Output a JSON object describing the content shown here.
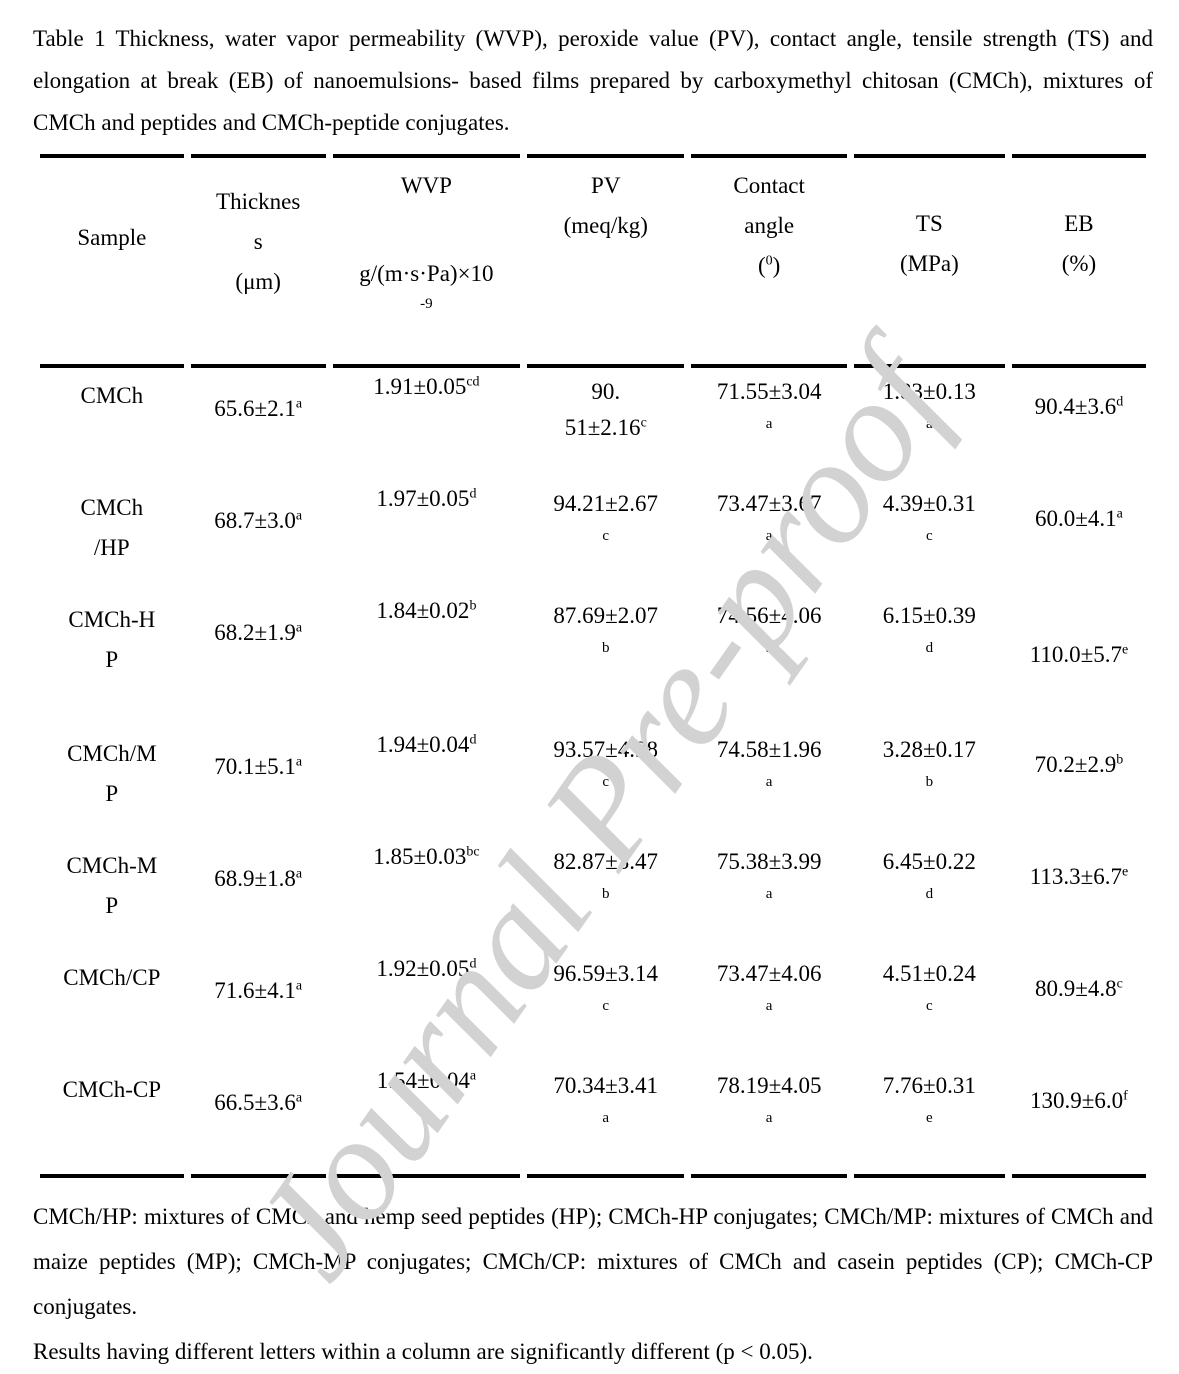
{
  "title": "Table 1 Thickness, water vapor permeability (WVP), peroxide value (PV), contact angle, tensile strength (TS) and elongation at break (EB) of nanoemulsions- based films prepared by carboxymethyl chitosan (CMCh), mixtures of CMCh and peptides and CMCh-peptide conjugates.",
  "watermark": "Journal Pre-proof",
  "table": {
    "headers": {
      "sample": "Sample",
      "thickness_lines": [
        "Thicknes",
        "s",
        "(μm)"
      ],
      "wvp_name": "WVP",
      "wvp_unit": "g/(m·s·Pa)×10",
      "wvp_exp": "-9",
      "pv_name": "PV",
      "pv_unit": "(meq/kg)",
      "contact_line1": "Contact",
      "contact_line2": "angle",
      "contact_unit_open": "(",
      "contact_deg": "0",
      "contact_unit_close": ")",
      "ts_name": "TS",
      "ts_unit": "(MPa)",
      "eb_name": "EB",
      "eb_unit": "(%)"
    },
    "rows": [
      {
        "sample": [
          "CMCh"
        ],
        "thickness": {
          "v": "65.6±2.1",
          "s": "a"
        },
        "wvp": {
          "v": "1.91±0.05",
          "s": "cd"
        },
        "pv": {
          "lines": [
            "90.",
            "51±2.16"
          ],
          "s": "c",
          "below": false
        },
        "contact": {
          "v": "71.55±3.04",
          "s": "a",
          "below": true
        },
        "ts": {
          "v": "1.83±0.13",
          "s": "a",
          "below": true
        },
        "eb": {
          "v": "90.4±3.6",
          "s": "d",
          "low": false
        }
      },
      {
        "sample": [
          "CMCh",
          "/HP"
        ],
        "thickness": {
          "v": "68.7±3.0",
          "s": "a"
        },
        "wvp": {
          "v": "1.97±0.05",
          "s": "d"
        },
        "pv": {
          "v": "94.21±2.67",
          "s": "c",
          "below": true
        },
        "contact": {
          "v": "73.47±3.67",
          "s": "a",
          "below": true
        },
        "ts": {
          "v": "4.39±0.31",
          "s": "c",
          "below": true
        },
        "eb": {
          "v": "60.0±4.1",
          "s": "a",
          "low": false
        }
      },
      {
        "sample": [
          "CMCh-H",
          "P"
        ],
        "thickness": {
          "v": "68.2±1.9",
          "s": "a"
        },
        "wvp": {
          "v": "1.84±0.02",
          "s": "b"
        },
        "pv": {
          "v": "87.69±2.07",
          "s": "b",
          "below": true
        },
        "contact": {
          "v": "74.56±4.06",
          "s": "a",
          "below": true
        },
        "ts": {
          "v": "6.15±0.39",
          "s": "d",
          "below": true
        },
        "eb": {
          "v": "110.0±5.7",
          "s": "e",
          "low": true
        }
      },
      {
        "sample": [
          "CMCh/M",
          "P"
        ],
        "thickness": {
          "v": "70.1±5.1",
          "s": "a"
        },
        "wvp": {
          "v": "1.94±0.04",
          "s": "d"
        },
        "pv": {
          "v": "93.57±4.98",
          "s": "c",
          "below": true
        },
        "contact": {
          "v": "74.58±1.96",
          "s": "a",
          "below": true
        },
        "ts": {
          "v": "3.28±0.17",
          "s": "b",
          "below": true
        },
        "eb": {
          "v": "70.2±2.9",
          "s": "b",
          "low": false
        }
      },
      {
        "sample": [
          "CMCh-M",
          "P"
        ],
        "thickness": {
          "v": "68.9±1.8",
          "s": "a"
        },
        "wvp": {
          "v": "1.85±0.03",
          "s": "bc"
        },
        "pv": {
          "v": "82.87±3.47",
          "s": "b",
          "below": true
        },
        "contact": {
          "v": "75.38±3.99",
          "s": "a",
          "below": true
        },
        "ts": {
          "v": "6.45±0.22",
          "s": "d",
          "below": true
        },
        "eb": {
          "v": "113.3±6.7",
          "s": "e",
          "low": false
        }
      },
      {
        "sample": [
          "CMCh/CP"
        ],
        "thickness": {
          "v": "71.6±4.1",
          "s": "a"
        },
        "wvp": {
          "v": "1.92±0.05",
          "s": "d"
        },
        "pv": {
          "v": "96.59±3.14",
          "s": "c",
          "below": true
        },
        "contact": {
          "v": "73.47±4.06",
          "s": "a",
          "below": true
        },
        "ts": {
          "v": "4.51±0.24",
          "s": "c",
          "below": true
        },
        "eb": {
          "v": "80.9±4.8",
          "s": "c",
          "low": false
        }
      },
      {
        "sample": [
          "CMCh-CP"
        ],
        "thickness": {
          "v": "66.5±3.6",
          "s": "a"
        },
        "wvp": {
          "v": "1.54±0.04",
          "s": "a"
        },
        "pv": {
          "v": "70.34±3.41",
          "s": "a",
          "below": true
        },
        "contact": {
          "v": "78.19±4.05",
          "s": "a",
          "below": true
        },
        "ts": {
          "v": "7.76±0.31",
          "s": "e",
          "below": true
        },
        "eb": {
          "v": "130.9±6.0",
          "s": "f",
          "low": false
        }
      }
    ]
  },
  "notes": {
    "abbreviations": "CMCh/HP: mixtures of CMCh and hemp seed peptides (HP); CMCh-HP conjugates; CMCh/MP: mixtures of CMCh and maize peptides (MP); CMCh-MP conjugates; CMCh/CP: mixtures of CMCh and casein peptides (CP); CMCh-CP conjugates.",
    "significance": "Results having different letters within a column are significantly different (p < 0.05)."
  }
}
